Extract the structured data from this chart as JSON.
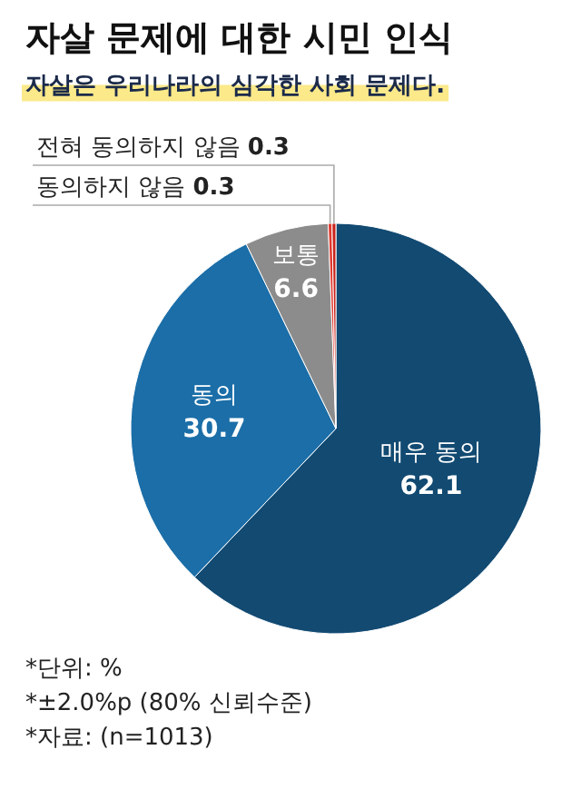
{
  "chart_data": {
    "type": "pie",
    "title": "자살 문제에 대한 시민 인식",
    "subtitle": "자살은 우리나라의 심각한 사회 문제다.",
    "categories": [
      "매우 동의",
      "동의",
      "보통",
      "동의하지 않음",
      "전혀 동의하지 않음"
    ],
    "values": [
      62.1,
      30.7,
      6.6,
      0.3,
      0.3
    ],
    "colors": [
      "#124a72",
      "#1b6ea8",
      "#8c8c8c",
      "#e0382e",
      "#c9231b"
    ],
    "data_labels": true,
    "annotations": [
      "*단위: %",
      "*±2.0%p (80% 신뢰수준)",
      "*자료: (n=1013)"
    ]
  }
}
